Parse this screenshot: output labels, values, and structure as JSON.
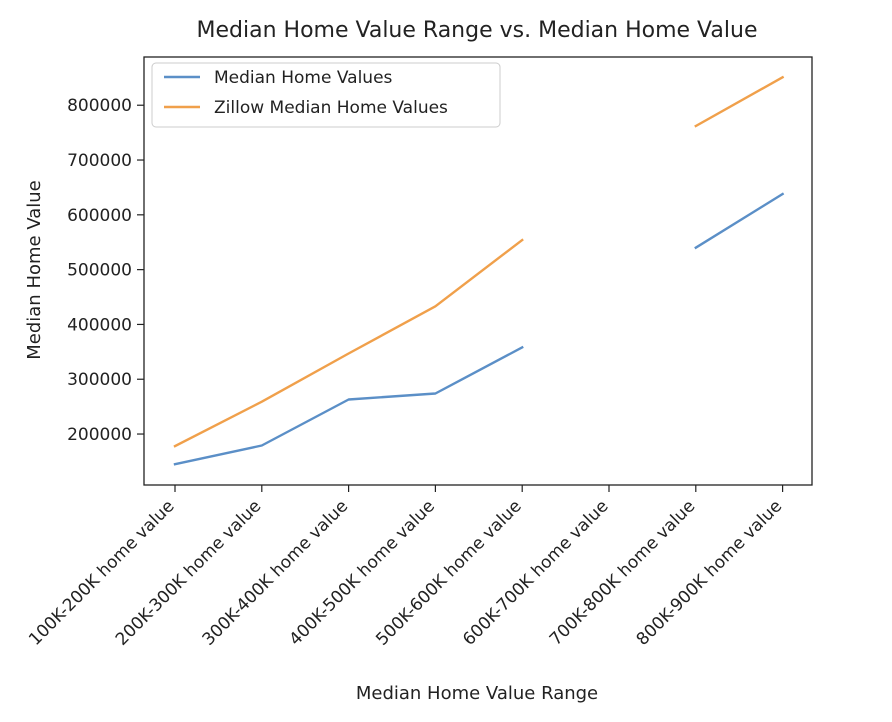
{
  "chart_data": {
    "type": "line",
    "title": "Median Home Value Range vs. Median Home Value",
    "xlabel": "Median Home Value Range",
    "ylabel": "Median Home Value",
    "categories": [
      "100K-200K home value",
      "200K-300K home value",
      "300K-400K home value",
      "400K-500K home value",
      "500K-600K home value",
      "600K-700K home value",
      "700K-800K home value",
      "800K-900K home value"
    ],
    "series": [
      {
        "name": "Median Home Values",
        "color": "#5b8fc7",
        "values": [
          145000,
          179000,
          263000,
          274000,
          358000,
          null,
          540000,
          638000
        ]
      },
      {
        "name": "Zillow Median Home Values",
        "color": "#f0a04b",
        "values": [
          178000,
          259000,
          347000,
          433000,
          554000,
          null,
          762000,
          851000
        ]
      }
    ],
    "yticks": [
      200000,
      300000,
      400000,
      500000,
      600000,
      700000,
      800000
    ],
    "ylim": [
      107000,
      888000
    ],
    "legend_position": "top-left",
    "grid": false
  }
}
